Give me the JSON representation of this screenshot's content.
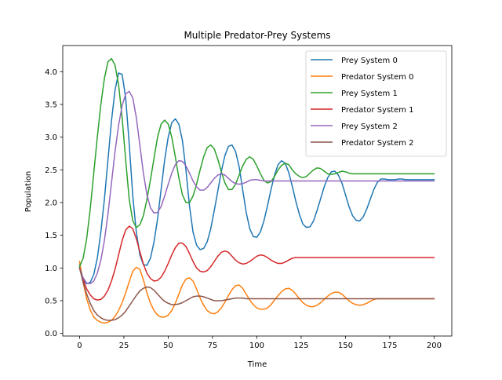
{
  "chart_data": {
    "type": "line",
    "title": "Multiple Predator-Prey Systems",
    "xlabel": "Time",
    "ylabel": "Population",
    "xlim": [
      -9.5,
      210
    ],
    "ylim": [
      -0.04,
      4.4
    ],
    "x_ticks": [
      0,
      25,
      50,
      75,
      100,
      125,
      150,
      175,
      200
    ],
    "y_ticks": [
      0.0,
      0.5,
      1.0,
      1.5,
      2.0,
      2.5,
      3.0,
      3.5,
      4.0
    ],
    "x_tick_labels": [
      "0",
      "25",
      "50",
      "75",
      "100",
      "125",
      "150",
      "175",
      "200"
    ],
    "y_tick_labels": [
      "0.0",
      "0.5",
      "1.0",
      "1.5",
      "2.0",
      "2.5",
      "3.0",
      "3.5",
      "4.0"
    ],
    "grid": false,
    "legend_position": "top-right",
    "series": [
      {
        "name": "Prey System 0",
        "color": "#1f77b4",
        "x": [
          0,
          2,
          4,
          6,
          8,
          10,
          12,
          14,
          16,
          18,
          20,
          22,
          24,
          26,
          28,
          30,
          32,
          34,
          36,
          38,
          40,
          42,
          44,
          46,
          48,
          50,
          52,
          54,
          56,
          58,
          60,
          62,
          64,
          66,
          68,
          70,
          72,
          74,
          76,
          78,
          80,
          82,
          84,
          86,
          88,
          90,
          92,
          94,
          96,
          98,
          100,
          102,
          104,
          106,
          108,
          110,
          112,
          114,
          116,
          118,
          120,
          122,
          124,
          126,
          128,
          130,
          132,
          134,
          136,
          138,
          140,
          142,
          144,
          146,
          148,
          150,
          152,
          154,
          156,
          158,
          160,
          162,
          164,
          166,
          168,
          170,
          172,
          174,
          176,
          178,
          180,
          182,
          184,
          186,
          188,
          190,
          192,
          194,
          196,
          198,
          200
        ],
        "y": [
          1.05,
          0.82,
          0.76,
          0.78,
          0.9,
          1.15,
          1.55,
          2.05,
          2.65,
          3.25,
          3.72,
          3.98,
          3.96,
          3.6,
          2.9,
          2.1,
          1.55,
          1.2,
          1.05,
          1.04,
          1.15,
          1.4,
          1.75,
          2.2,
          2.65,
          3.0,
          3.22,
          3.28,
          3.2,
          2.95,
          2.5,
          1.95,
          1.55,
          1.35,
          1.28,
          1.3,
          1.4,
          1.6,
          1.88,
          2.18,
          2.48,
          2.72,
          2.86,
          2.88,
          2.78,
          2.55,
          2.2,
          1.85,
          1.6,
          1.48,
          1.47,
          1.55,
          1.72,
          1.95,
          2.2,
          2.42,
          2.58,
          2.64,
          2.6,
          2.46,
          2.25,
          2.02,
          1.82,
          1.67,
          1.62,
          1.63,
          1.72,
          1.88,
          2.06,
          2.24,
          2.38,
          2.47,
          2.48,
          2.42,
          2.3,
          2.12,
          1.94,
          1.8,
          1.73,
          1.72,
          1.78,
          1.9,
          2.05,
          2.2,
          2.31,
          2.36,
          2.36,
          2.35,
          2.35,
          2.35,
          2.36,
          2.36,
          2.35,
          2.35,
          2.35,
          2.35,
          2.35,
          2.35,
          2.35,
          2.35,
          2.35
        ]
      },
      {
        "name": "Predator System 0",
        "color": "#ff7f0e",
        "x": [
          0,
          2,
          4,
          6,
          8,
          10,
          12,
          14,
          16,
          18,
          20,
          22,
          24,
          26,
          28,
          30,
          32,
          34,
          36,
          38,
          40,
          42,
          44,
          46,
          48,
          50,
          52,
          54,
          56,
          58,
          60,
          62,
          64,
          66,
          68,
          70,
          72,
          74,
          76,
          78,
          80,
          82,
          84,
          86,
          88,
          90,
          92,
          94,
          96,
          98,
          100,
          102,
          104,
          106,
          108,
          110,
          112,
          114,
          116,
          118,
          120,
          122,
          124,
          126,
          128,
          130,
          132,
          134,
          136,
          138,
          140,
          142,
          144,
          146,
          148,
          150,
          152,
          154,
          156,
          158,
          160,
          162,
          164,
          166,
          168,
          170,
          172,
          174,
          176,
          178,
          180,
          182,
          184,
          186,
          188,
          190,
          192,
          194,
          196,
          198,
          200
        ],
        "y": [
          1.1,
          0.78,
          0.53,
          0.36,
          0.25,
          0.2,
          0.17,
          0.16,
          0.17,
          0.2,
          0.26,
          0.35,
          0.47,
          0.62,
          0.79,
          0.95,
          1.01,
          0.98,
          0.82,
          0.62,
          0.46,
          0.35,
          0.28,
          0.25,
          0.25,
          0.28,
          0.35,
          0.46,
          0.6,
          0.74,
          0.83,
          0.85,
          0.8,
          0.68,
          0.54,
          0.43,
          0.35,
          0.31,
          0.3,
          0.33,
          0.39,
          0.48,
          0.58,
          0.67,
          0.73,
          0.74,
          0.69,
          0.6,
          0.51,
          0.44,
          0.39,
          0.37,
          0.37,
          0.39,
          0.44,
          0.51,
          0.58,
          0.64,
          0.68,
          0.69,
          0.66,
          0.6,
          0.53,
          0.47,
          0.43,
          0.41,
          0.41,
          0.43,
          0.47,
          0.52,
          0.57,
          0.61,
          0.63,
          0.63,
          0.6,
          0.55,
          0.5,
          0.46,
          0.44,
          0.43,
          0.44,
          0.46,
          0.49,
          0.52,
          0.53,
          0.53,
          0.53,
          0.53,
          0.53,
          0.53,
          0.53,
          0.53,
          0.53,
          0.53,
          0.53,
          0.53,
          0.53,
          0.53,
          0.53,
          0.53,
          0.53
        ]
      },
      {
        "name": "Prey System 1",
        "color": "#2ca02c",
        "x": [
          0,
          2,
          4,
          6,
          8,
          10,
          12,
          14,
          16,
          18,
          20,
          22,
          24,
          26,
          28,
          30,
          32,
          34,
          36,
          38,
          40,
          42,
          44,
          46,
          48,
          50,
          52,
          54,
          56,
          58,
          60,
          62,
          64,
          66,
          68,
          70,
          72,
          74,
          76,
          78,
          80,
          82,
          84,
          86,
          88,
          90,
          92,
          94,
          96,
          98,
          100,
          102,
          104,
          106,
          108,
          110,
          112,
          114,
          116,
          118,
          120,
          122,
          124,
          126,
          128,
          130,
          132,
          134,
          136,
          138,
          140,
          142,
          144,
          146,
          148,
          150,
          152,
          154,
          156,
          158,
          160,
          162,
          164,
          166,
          168,
          170,
          172,
          174,
          176,
          178,
          180,
          182,
          184,
          186,
          188,
          190,
          192,
          194,
          196,
          198,
          200
        ],
        "y": [
          1.02,
          1.15,
          1.45,
          1.9,
          2.45,
          3.0,
          3.5,
          3.9,
          4.15,
          4.2,
          4.1,
          3.8,
          3.3,
          2.65,
          2.05,
          1.72,
          1.62,
          1.66,
          1.8,
          2.05,
          2.35,
          2.68,
          3.0,
          3.2,
          3.26,
          3.2,
          3.0,
          2.7,
          2.38,
          2.12,
          2.0,
          2.0,
          2.1,
          2.28,
          2.5,
          2.7,
          2.84,
          2.88,
          2.82,
          2.66,
          2.47,
          2.3,
          2.2,
          2.2,
          2.28,
          2.42,
          2.56,
          2.66,
          2.7,
          2.66,
          2.56,
          2.44,
          2.34,
          2.3,
          2.32,
          2.4,
          2.5,
          2.57,
          2.6,
          2.58,
          2.5,
          2.44,
          2.4,
          2.38,
          2.4,
          2.45,
          2.5,
          2.53,
          2.52,
          2.48,
          2.44,
          2.43,
          2.44,
          2.46,
          2.48,
          2.47,
          2.45,
          2.44,
          2.44,
          2.44,
          2.44,
          2.44,
          2.44,
          2.44,
          2.44,
          2.44,
          2.44,
          2.44,
          2.44,
          2.44,
          2.44,
          2.44,
          2.44,
          2.44,
          2.44,
          2.44,
          2.44,
          2.44,
          2.44,
          2.44,
          2.44
        ]
      },
      {
        "name": "Predator System 1",
        "color": "#d62728",
        "x": [
          0,
          2,
          4,
          6,
          8,
          10,
          12,
          14,
          16,
          18,
          20,
          22,
          24,
          26,
          28,
          30,
          32,
          34,
          36,
          38,
          40,
          42,
          44,
          46,
          48,
          50,
          52,
          54,
          56,
          58,
          60,
          62,
          64,
          66,
          68,
          70,
          72,
          74,
          76,
          78,
          80,
          82,
          84,
          86,
          88,
          90,
          92,
          94,
          96,
          98,
          100,
          102,
          104,
          106,
          108,
          110,
          112,
          114,
          116,
          118,
          120,
          122,
          124,
          126,
          128,
          130,
          132,
          134,
          136,
          138,
          140,
          142,
          144,
          146,
          148,
          150,
          152,
          154,
          156,
          158,
          160,
          162,
          164,
          166,
          168,
          170,
          172,
          174,
          176,
          178,
          180,
          182,
          184,
          186,
          188,
          190,
          192,
          194,
          196,
          198,
          200
        ],
        "y": [
          1.0,
          0.82,
          0.68,
          0.59,
          0.53,
          0.51,
          0.52,
          0.57,
          0.66,
          0.8,
          0.98,
          1.2,
          1.42,
          1.58,
          1.64,
          1.6,
          1.45,
          1.25,
          1.06,
          0.92,
          0.84,
          0.8,
          0.81,
          0.86,
          0.95,
          1.07,
          1.2,
          1.31,
          1.38,
          1.38,
          1.33,
          1.22,
          1.1,
          1.0,
          0.95,
          0.94,
          0.96,
          1.02,
          1.1,
          1.18,
          1.24,
          1.26,
          1.24,
          1.18,
          1.12,
          1.08,
          1.06,
          1.07,
          1.1,
          1.14,
          1.18,
          1.2,
          1.19,
          1.16,
          1.12,
          1.09,
          1.07,
          1.07,
          1.09,
          1.12,
          1.15,
          1.16,
          1.16,
          1.16,
          1.16,
          1.16,
          1.16,
          1.16,
          1.16,
          1.16,
          1.16,
          1.16,
          1.16,
          1.16,
          1.16,
          1.16,
          1.16,
          1.16,
          1.16,
          1.16,
          1.16,
          1.16,
          1.16,
          1.16,
          1.16,
          1.16,
          1.16,
          1.16,
          1.16,
          1.16,
          1.16,
          1.16,
          1.16,
          1.16,
          1.16,
          1.16,
          1.16,
          1.16,
          1.16,
          1.16,
          1.16
        ]
      },
      {
        "name": "Prey System 2",
        "color": "#9467bd",
        "x": [
          0,
          2,
          4,
          6,
          8,
          10,
          12,
          14,
          16,
          18,
          20,
          22,
          24,
          26,
          28,
          30,
          32,
          34,
          36,
          38,
          40,
          42,
          44,
          46,
          48,
          50,
          52,
          54,
          56,
          58,
          60,
          62,
          64,
          66,
          68,
          70,
          72,
          74,
          76,
          78,
          80,
          82,
          84,
          86,
          88,
          90,
          92,
          94,
          96,
          98,
          100,
          102,
          104,
          106,
          108,
          110,
          112,
          114,
          116,
          118,
          120,
          122,
          124,
          126,
          128,
          130,
          132,
          134,
          136,
          138,
          140,
          142,
          144,
          146,
          148,
          150,
          152,
          154,
          156,
          158,
          160,
          162,
          164,
          166,
          168,
          170,
          172,
          174,
          176,
          178,
          180,
          182,
          184,
          186,
          188,
          190,
          192,
          194,
          196,
          198,
          200
        ],
        "y": [
          1.0,
          0.85,
          0.77,
          0.76,
          0.8,
          0.92,
          1.12,
          1.42,
          1.82,
          2.3,
          2.78,
          3.18,
          3.48,
          3.66,
          3.7,
          3.6,
          3.3,
          2.88,
          2.45,
          2.12,
          1.92,
          1.84,
          1.85,
          1.94,
          2.1,
          2.28,
          2.45,
          2.58,
          2.64,
          2.63,
          2.56,
          2.45,
          2.33,
          2.24,
          2.19,
          2.19,
          2.23,
          2.3,
          2.37,
          2.42,
          2.44,
          2.42,
          2.37,
          2.32,
          2.29,
          2.28,
          2.29,
          2.31,
          2.34,
          2.35,
          2.35,
          2.34,
          2.33,
          2.33,
          2.33,
          2.33,
          2.33,
          2.33,
          2.33,
          2.33,
          2.33,
          2.33,
          2.33,
          2.33,
          2.33,
          2.33,
          2.33,
          2.33,
          2.33,
          2.33,
          2.33,
          2.33,
          2.33,
          2.33,
          2.33,
          2.33,
          2.33,
          2.33,
          2.33,
          2.33,
          2.33,
          2.33,
          2.33,
          2.33,
          2.33,
          2.33,
          2.33,
          2.33,
          2.33,
          2.33,
          2.33,
          2.33,
          2.33,
          2.33,
          2.33,
          2.33,
          2.33,
          2.33,
          2.33,
          2.33,
          2.33
        ]
      },
      {
        "name": "Predator System 2",
        "color": "#8c564b",
        "x": [
          0,
          2,
          4,
          6,
          8,
          10,
          12,
          14,
          16,
          18,
          20,
          22,
          24,
          26,
          28,
          30,
          32,
          34,
          36,
          38,
          40,
          42,
          44,
          46,
          48,
          50,
          52,
          54,
          56,
          58,
          60,
          62,
          64,
          66,
          68,
          70,
          72,
          74,
          76,
          78,
          80,
          82,
          84,
          86,
          88,
          90,
          92,
          94,
          96,
          98,
          100,
          102,
          104,
          106,
          108,
          110,
          112,
          114,
          116,
          118,
          120,
          122,
          124,
          126,
          128,
          130,
          132,
          134,
          136,
          138,
          140,
          142,
          144,
          146,
          148,
          150,
          152,
          154,
          156,
          158,
          160,
          162,
          164,
          166,
          168,
          170,
          172,
          174,
          176,
          178,
          180,
          182,
          184,
          186,
          188,
          190,
          192,
          194,
          196,
          198,
          200
        ],
        "y": [
          1.0,
          0.78,
          0.6,
          0.46,
          0.35,
          0.28,
          0.24,
          0.21,
          0.2,
          0.2,
          0.21,
          0.24,
          0.28,
          0.34,
          0.42,
          0.5,
          0.58,
          0.65,
          0.69,
          0.71,
          0.7,
          0.66,
          0.6,
          0.54,
          0.49,
          0.46,
          0.44,
          0.44,
          0.45,
          0.47,
          0.5,
          0.53,
          0.56,
          0.57,
          0.57,
          0.56,
          0.54,
          0.52,
          0.5,
          0.5,
          0.5,
          0.51,
          0.52,
          0.53,
          0.54,
          0.54,
          0.54,
          0.53,
          0.53,
          0.53,
          0.53,
          0.53,
          0.53,
          0.53,
          0.53,
          0.53,
          0.53,
          0.53,
          0.53,
          0.53,
          0.53,
          0.53,
          0.53,
          0.53,
          0.53,
          0.53,
          0.53,
          0.53,
          0.53,
          0.53,
          0.53,
          0.53,
          0.53,
          0.53,
          0.53,
          0.53,
          0.53,
          0.53,
          0.53,
          0.53,
          0.53,
          0.53,
          0.53,
          0.53,
          0.53,
          0.53,
          0.53,
          0.53,
          0.53,
          0.53,
          0.53,
          0.53,
          0.53,
          0.53,
          0.53,
          0.53,
          0.53,
          0.53,
          0.53,
          0.53,
          0.53
        ]
      }
    ]
  }
}
